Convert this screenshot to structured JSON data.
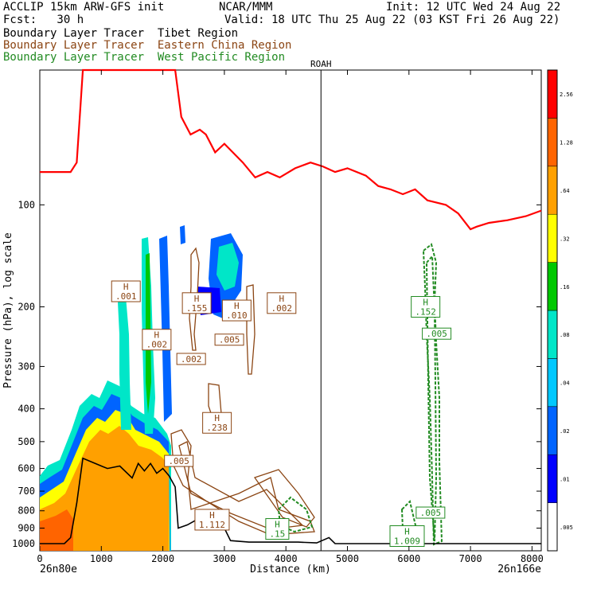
{
  "header": {
    "model": "ACCLIP 15km ARW-GFS init",
    "org": "NCAR/MMM",
    "init": "Init: 12 UTC Wed 24 Aug 22",
    "fcst": "Fcst:   30 h",
    "valid": "Valid: 18 UTC Thu 25 Aug 22 (03 KST Fri 26 Aug 22)"
  },
  "legend": [
    {
      "label": "Boundary Layer Tracer  Tibet Region",
      "color": "#000000"
    },
    {
      "label": "Boundary Layer Tracer  Eastern China Region",
      "color": "#8B4513"
    },
    {
      "label": "Boundary Layer Tracer  West Pacific Region",
      "color": "#228B22"
    }
  ],
  "chart_data": {
    "type": "cross-section",
    "xlabel": "Distance (km)",
    "ylabel": "Pressure (hPa), log scale",
    "x_ticks": [
      0,
      1000,
      2000,
      3000,
      4000,
      5000,
      6000,
      7000,
      8000
    ],
    "y_ticks": [
      100,
      200,
      300,
      400,
      500,
      600,
      700,
      800,
      900,
      1000
    ],
    "xlim": [
      0,
      8150
    ],
    "ylim": [
      1050,
      40
    ],
    "left_endpoint": "26n80e",
    "right_endpoint": "26n166e",
    "marker": {
      "label": "ROAH",
      "x": 4570
    },
    "colorbar": {
      "levels": [
        ".005",
        ".01",
        ".02",
        ".04",
        ".08",
        ".16",
        ".32",
        ".64",
        "1.28",
        "2.56"
      ],
      "colors": [
        "#ffffff",
        "#0000ff",
        "#0064ff",
        "#00c8ff",
        "#00e6c8",
        "#00c800",
        "#ffff00",
        "#ffa000",
        "#ff6400",
        "#ff0000"
      ]
    },
    "tropopause_line": {
      "color": "#ff0000",
      "points": [
        [
          0,
          80
        ],
        [
          500,
          80
        ],
        [
          600,
          75
        ],
        [
          650,
          55
        ],
        [
          700,
          40
        ],
        [
          2200,
          40
        ],
        [
          2300,
          55
        ],
        [
          2450,
          62
        ],
        [
          2600,
          60
        ],
        [
          2700,
          62
        ],
        [
          2850,
          70
        ],
        [
          3000,
          66
        ],
        [
          3300,
          75
        ],
        [
          3500,
          83
        ],
        [
          3700,
          80
        ],
        [
          3900,
          83
        ],
        [
          4150,
          78
        ],
        [
          4400,
          75
        ],
        [
          4600,
          77
        ],
        [
          4800,
          80
        ],
        [
          5000,
          78
        ],
        [
          5300,
          82
        ],
        [
          5500,
          88
        ],
        [
          5700,
          90
        ],
        [
          5900,
          93
        ],
        [
          6100,
          90
        ],
        [
          6300,
          97
        ],
        [
          6600,
          100
        ],
        [
          6800,
          106
        ],
        [
          7000,
          118
        ],
        [
          7100,
          116
        ],
        [
          7300,
          113
        ],
        [
          7600,
          111
        ],
        [
          7900,
          108
        ],
        [
          8150,
          104
        ]
      ]
    },
    "terrain_line": {
      "color": "#000000",
      "points": [
        [
          0,
          1000
        ],
        [
          400,
          1000
        ],
        [
          500,
          960
        ],
        [
          600,
          760
        ],
        [
          700,
          560
        ],
        [
          900,
          580
        ],
        [
          1100,
          600
        ],
        [
          1300,
          590
        ],
        [
          1500,
          640
        ],
        [
          1600,
          580
        ],
        [
          1700,
          610
        ],
        [
          1800,
          580
        ],
        [
          1900,
          620
        ],
        [
          2000,
          600
        ],
        [
          2100,
          630
        ],
        [
          2200,
          680
        ],
        [
          2250,
          900
        ],
        [
          2400,
          880
        ],
        [
          2600,
          840
        ],
        [
          2800,
          870
        ],
        [
          2900,
          820
        ],
        [
          3000,
          900
        ],
        [
          3100,
          980
        ],
        [
          3400,
          990
        ],
        [
          3800,
          990
        ],
        [
          4200,
          990
        ],
        [
          4500,
          995
        ],
        [
          4700,
          960
        ],
        [
          4800,
          1000
        ],
        [
          5500,
          1000
        ],
        [
          8150,
          1000
        ]
      ]
    },
    "tracer_labels": [
      {
        "label": "H\n.001",
        "x": 1400,
        "p": 180,
        "color": "#8B4513"
      },
      {
        "label": "H\n.002",
        "x": 1900,
        "p": 250,
        "color": "#8B4513"
      },
      {
        "label": "H\n.155",
        "x": 2550,
        "p": 195,
        "color": "#8B4513"
      },
      {
        "label": "H\n.010",
        "x": 3200,
        "p": 205,
        "color": "#8B4513"
      },
      {
        "label": "H\n.002",
        "x": 3930,
        "p": 195,
        "color": "#8B4513"
      },
      {
        "label": ".005",
        "x": 3080,
        "p": 250,
        "color": "#8B4513"
      },
      {
        "label": ".002",
        "x": 2460,
        "p": 285,
        "color": "#8B4513"
      },
      {
        "label": "H\n.238",
        "x": 2880,
        "p": 440,
        "color": "#8B4513"
      },
      {
        "label": ".005",
        "x": 2260,
        "p": 570,
        "color": "#8B4513"
      },
      {
        "label": "H\n1.112",
        "x": 2800,
        "p": 850,
        "color": "#8B4513"
      },
      {
        "label": "H\n.15",
        "x": 3860,
        "p": 905,
        "color": "#228B22"
      },
      {
        "label": "H\n.152",
        "x": 6270,
        "p": 200,
        "color": "#228B22"
      },
      {
        "label": ".005",
        "x": 6450,
        "p": 240,
        "color": "#228B22"
      },
      {
        "label": ".005",
        "x": 6350,
        "p": 810,
        "color": "#228B22"
      },
      {
        "label": "H\n1.009",
        "x": 5970,
        "p": 950,
        "color": "#228B22"
      }
    ]
  }
}
